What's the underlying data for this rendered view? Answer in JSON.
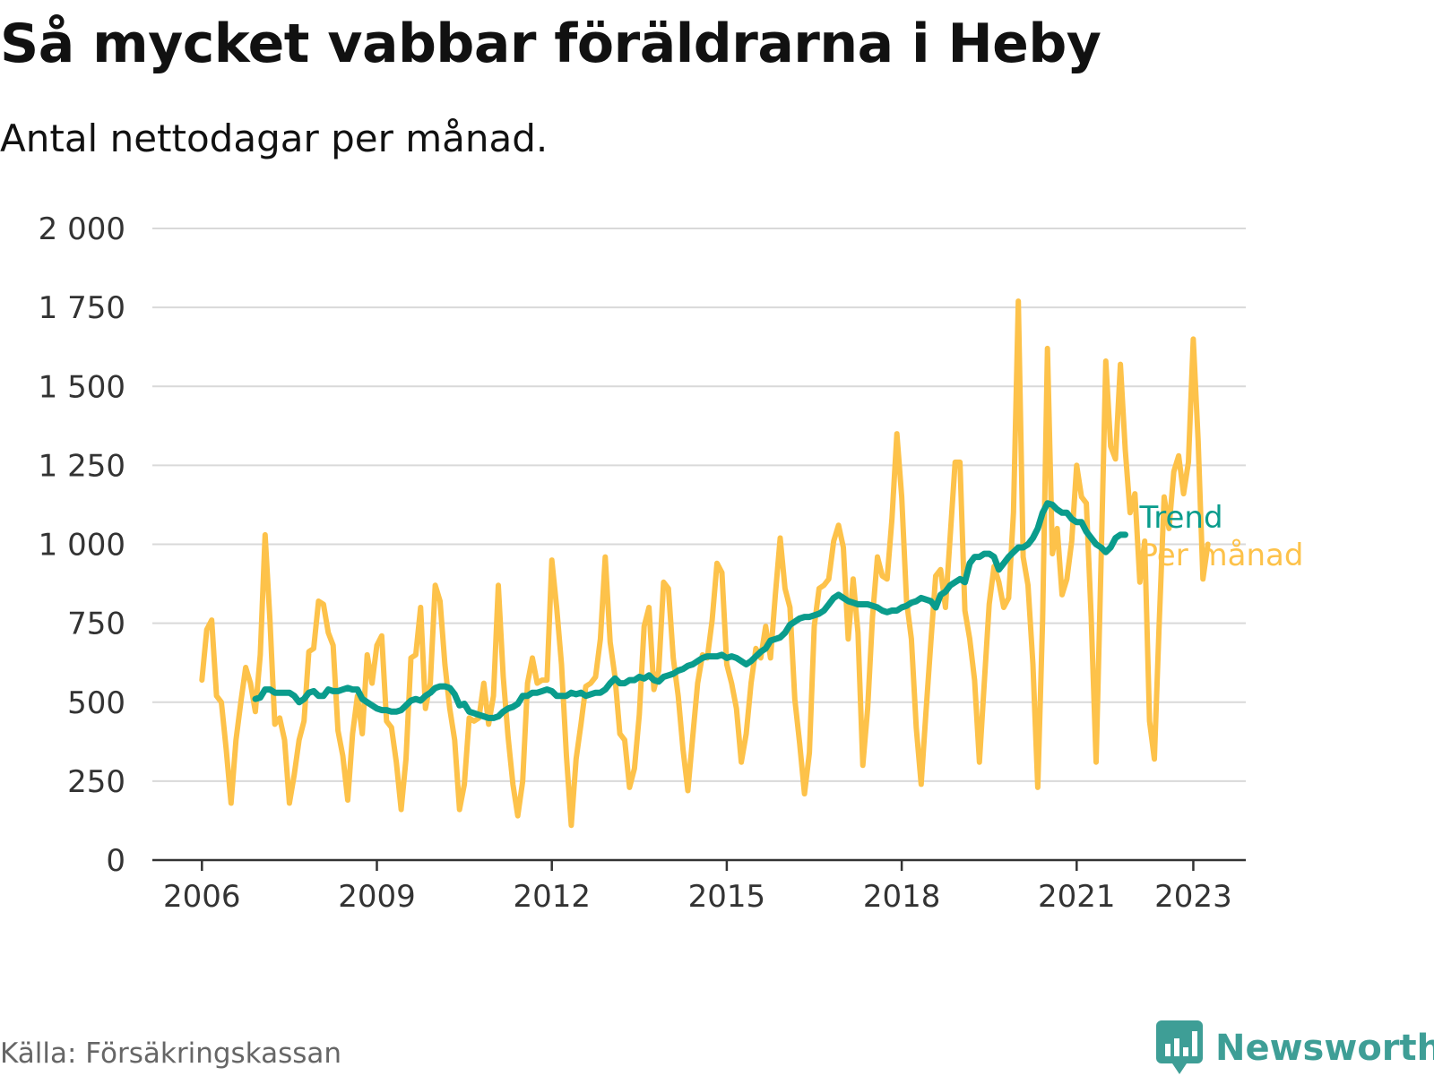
{
  "header": {
    "title": "Så mycket vabbar föräldrarna i Heby",
    "subtitle": "Antal nettodagar per månad."
  },
  "footer": {
    "source": "Källa: Försäkringskassan",
    "brand": "Newsworthy"
  },
  "colors": {
    "trend": "#0a9c8c",
    "monthly": "#fdc24a",
    "grid": "#d9d9d9",
    "axis": "#333333",
    "brand": "#3e9e96"
  },
  "chart_data": {
    "type": "line",
    "ylim": [
      0,
      2000
    ],
    "yticks": [
      0,
      250,
      500,
      750,
      1000,
      1250,
      1500,
      1750,
      2000
    ],
    "ytick_labels": [
      "0",
      "250",
      "500",
      "750",
      "1 000",
      "1 250",
      "1 500",
      "1 750",
      "2 000"
    ],
    "xlim": [
      2005.15,
      2023.9
    ],
    "xticks": [
      2006,
      2009,
      2012,
      2015,
      2018,
      2021,
      2023
    ],
    "xtick_labels": [
      "2006",
      "2009",
      "2012",
      "2015",
      "2018",
      "2021",
      "2023"
    ],
    "grid": true,
    "series": [
      {
        "name": "Per månad",
        "x_start": 2006.0,
        "x_step": 0.08333,
        "values": [
          570,
          730,
          760,
          520,
          500,
          350,
          180,
          380,
          500,
          610,
          560,
          470,
          650,
          1030,
          760,
          430,
          450,
          380,
          180,
          270,
          380,
          440,
          660,
          670,
          820,
          810,
          720,
          680,
          410,
          330,
          190,
          400,
          520,
          400,
          650,
          560,
          680,
          710,
          440,
          420,
          310,
          160,
          320,
          640,
          650,
          800,
          480,
          560,
          870,
          820,
          620,
          480,
          380,
          160,
          240,
          450,
          440,
          450,
          560,
          430,
          520,
          870,
          580,
          390,
          240,
          140,
          250,
          560,
          640,
          560,
          570,
          570,
          950,
          800,
          620,
          330,
          110,
          320,
          430,
          550,
          560,
          580,
          700,
          960,
          690,
          580,
          400,
          380,
          230,
          290,
          460,
          740,
          800,
          540,
          600,
          880,
          860,
          640,
          520,
          350,
          220,
          390,
          560,
          650,
          640,
          760,
          940,
          910,
          620,
          560,
          480,
          310,
          400,
          560,
          670,
          640,
          740,
          640,
          840,
          1020,
          860,
          800,
          510,
          370,
          210,
          340,
          740,
          860,
          870,
          890,
          1010,
          1060,
          990,
          700,
          890,
          720,
          300,
          480,
          770,
          960,
          900,
          890,
          1080,
          1350,
          1150,
          820,
          700,
          420,
          240,
          470,
          690,
          900,
          920,
          800,
          1030,
          1260,
          1260,
          790,
          700,
          570,
          310,
          560,
          810,
          930,
          880,
          800,
          830,
          1100,
          1770,
          960,
          870,
          620,
          230,
          760,
          1620,
          970,
          1050,
          840,
          890,
          1010,
          1250,
          1150,
          1130,
          770,
          310,
          930,
          1580,
          1310,
          1270,
          1570,
          1300,
          1100,
          1160,
          880,
          1010,
          440,
          320,
          750,
          1150,
          1050,
          1230,
          1280,
          1160,
          1260,
          1650,
          1330,
          890,
          1000
        ]
      },
      {
        "name": "Trend",
        "x_start": 2006.917,
        "x_step": 0.08333,
        "values": [
          510,
          515,
          540,
          540,
          530,
          530,
          530,
          530,
          520,
          500,
          510,
          530,
          535,
          520,
          520,
          540,
          535,
          535,
          540,
          545,
          540,
          540,
          510,
          500,
          490,
          480,
          475,
          475,
          470,
          470,
          475,
          490,
          505,
          510,
          505,
          520,
          530,
          545,
          550,
          550,
          545,
          525,
          490,
          495,
          470,
          465,
          460,
          455,
          450,
          450,
          455,
          470,
          480,
          485,
          495,
          520,
          520,
          530,
          530,
          535,
          540,
          535,
          520,
          520,
          520,
          530,
          525,
          530,
          520,
          525,
          530,
          530,
          540,
          560,
          575,
          560,
          560,
          570,
          570,
          580,
          575,
          585,
          570,
          565,
          580,
          585,
          590,
          600,
          605,
          615,
          620,
          630,
          640,
          645,
          645,
          645,
          650,
          640,
          645,
          640,
          630,
          620,
          630,
          645,
          660,
          670,
          695,
          700,
          705,
          720,
          745,
          755,
          765,
          770,
          770,
          775,
          780,
          790,
          810,
          830,
          840,
          830,
          820,
          815,
          810,
          810,
          810,
          805,
          800,
          790,
          785,
          790,
          790,
          800,
          805,
          815,
          820,
          830,
          825,
          820,
          800,
          840,
          850,
          870,
          880,
          890,
          880,
          940,
          960,
          960,
          970,
          970,
          960,
          920,
          940,
          960,
          975,
          990,
          990,
          1000,
          1020,
          1050,
          1100,
          1130,
          1125,
          1110,
          1100,
          1100,
          1080,
          1070,
          1070,
          1040,
          1020,
          1000,
          990,
          975,
          990,
          1020,
          1030,
          1030
        ]
      }
    ],
    "series_labels": [
      "Trend",
      "Per månad"
    ]
  }
}
